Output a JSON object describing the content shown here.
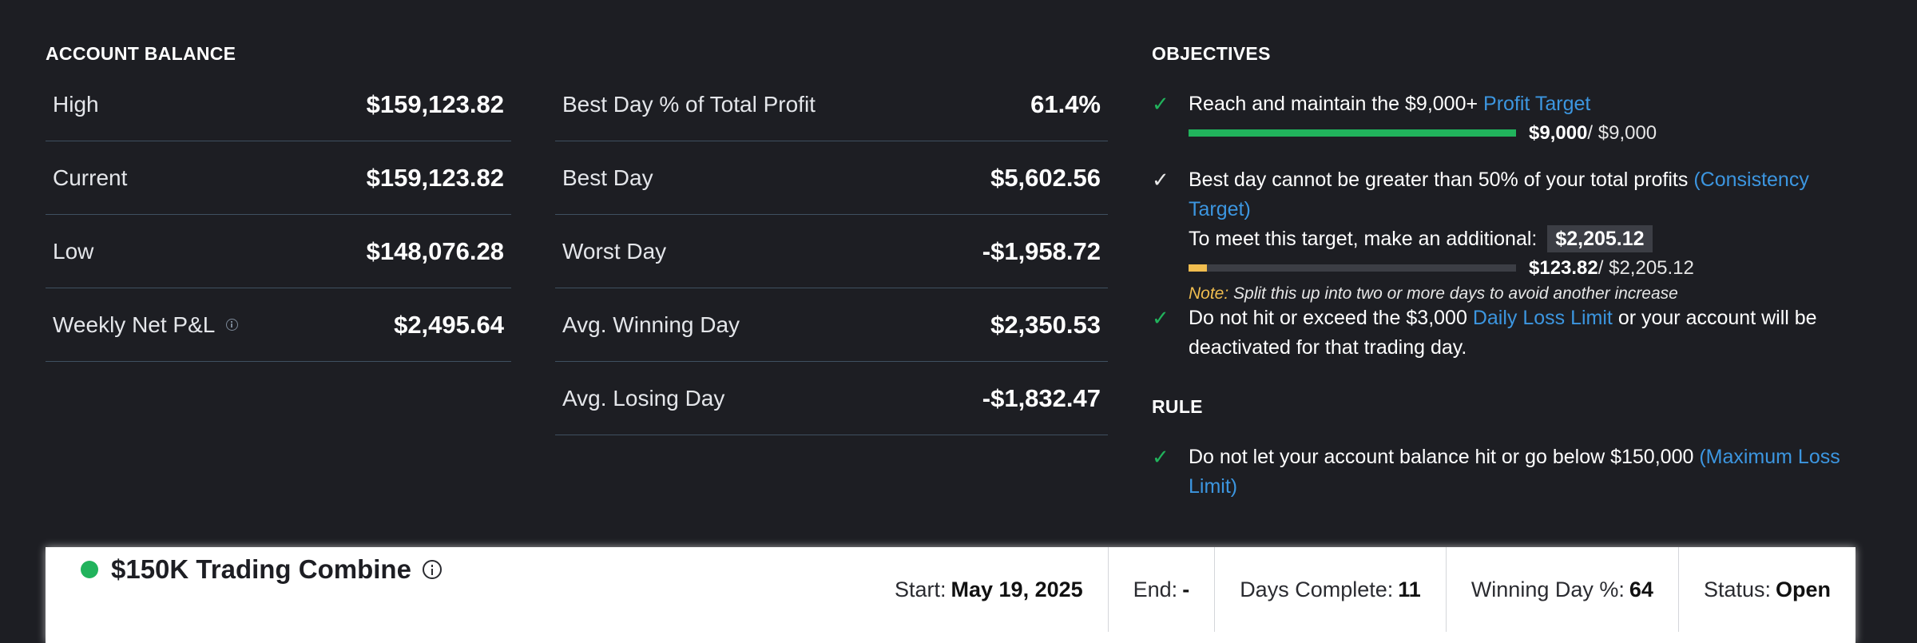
{
  "account_balance": {
    "title": "ACCOUNT BALANCE",
    "rows": [
      {
        "label": "High",
        "value": "$159,123.82"
      },
      {
        "label": "Current",
        "value": "$159,123.82"
      },
      {
        "label": "Low",
        "value": "$148,076.28"
      },
      {
        "label": "Weekly Net P&L",
        "value": "$2,495.64",
        "icon": "info-icon"
      }
    ]
  },
  "day_stats": {
    "rows": [
      {
        "label": "Best Day % of Total Profit",
        "value": "61.4%"
      },
      {
        "label": "Best Day",
        "value": "$5,602.56"
      },
      {
        "label": "Worst Day",
        "value": "-$1,958.72"
      },
      {
        "label": "Avg. Winning Day",
        "value": "$2,350.53"
      },
      {
        "label": "Avg. Losing Day",
        "value": "-$1,832.47"
      }
    ]
  },
  "objectives": {
    "title": "OBJECTIVES",
    "profit": {
      "text": "Reach and maintain the $9,000+ ",
      "link": "Profit Target",
      "progress_current": "$9,000",
      "progress_total": " / $9,000",
      "progress_fraction": 1.0,
      "check_color": "#21b35c"
    },
    "consistency": {
      "text": "Best day cannot be greater than 50% of your total profits ",
      "link": "(Consistency Target)",
      "line2": "To meet this target, make an additional:",
      "additional": "$2,205.12",
      "progress_current": "$123.82",
      "progress_total": " / $2,205.12",
      "progress_fraction": 0.056,
      "note_label": "Note:",
      "note_text": " Split this up into two or more days to avoid another increase",
      "check_color": "#e8e8e8"
    },
    "daily_loss": {
      "text_before": "Do not hit or exceed the $3,000 ",
      "link": "Daily Loss Limit",
      "text_after": " or your account will be deactivated for that trading day.",
      "check_color": "#21b35c"
    }
  },
  "rule": {
    "title": "RULE",
    "text": "Do not let your account balance hit or go below $150,000 ",
    "link": "(Maximum Loss Limit)",
    "check_color": "#21b35c"
  },
  "combine": {
    "title": "$150K Trading Combine",
    "status_color": "#21b35c",
    "fields": [
      {
        "label": "Start:",
        "value": "May 19, 2025"
      },
      {
        "label": "End:",
        "value": "-"
      },
      {
        "label": "Days Complete:",
        "value": "11"
      },
      {
        "label": "Winning Day %:",
        "value": "64"
      },
      {
        "label": "Status:",
        "value": "Open"
      }
    ]
  },
  "colors": {
    "background": "#1d1e23",
    "accent_green": "#21b35c",
    "link_blue": "#3c96e0",
    "note_yellow": "#f0bd4f",
    "divider": "#3f5060"
  }
}
